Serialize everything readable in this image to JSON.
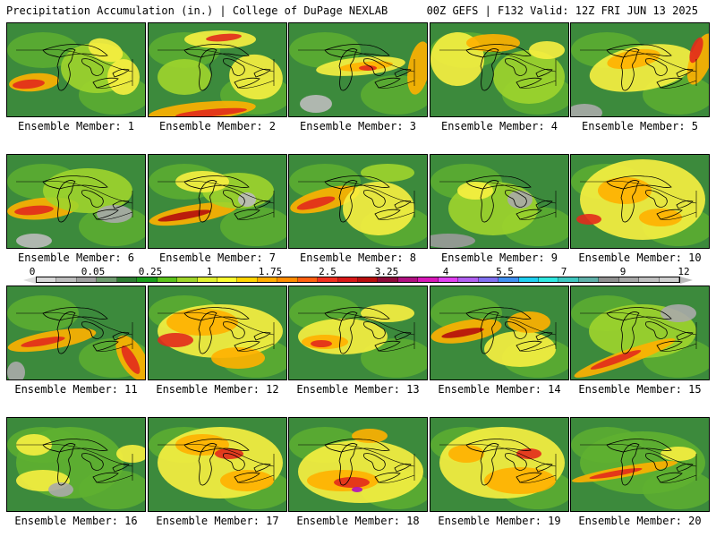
{
  "header": {
    "left": "Precipitation Accumulation (in.) | College of DuPage NEXLAB",
    "right": "00Z GEFS | F132 Valid: 12Z FRI JUN 13 2025"
  },
  "panels": [
    {
      "label": "Ensemble Member: 1"
    },
    {
      "label": "Ensemble Member: 2"
    },
    {
      "label": "Ensemble Member: 3"
    },
    {
      "label": "Ensemble Member: 4"
    },
    {
      "label": "Ensemble Member: 5"
    },
    {
      "label": "Ensemble Member: 6"
    },
    {
      "label": "Ensemble Member: 7"
    },
    {
      "label": "Ensemble Member: 8"
    },
    {
      "label": "Ensemble Member: 9"
    },
    {
      "label": "Ensemble Member: 10"
    },
    {
      "label": "Ensemble Member: 11"
    },
    {
      "label": "Ensemble Member: 12"
    },
    {
      "label": "Ensemble Member: 13"
    },
    {
      "label": "Ensemble Member: 14"
    },
    {
      "label": "Ensemble Member: 15"
    },
    {
      "label": "Ensemble Member: 16"
    },
    {
      "label": "Ensemble Member: 17"
    },
    {
      "label": "Ensemble Member: 18"
    },
    {
      "label": "Ensemble Member: 19"
    },
    {
      "label": "Ensemble Member: 20"
    }
  ],
  "legend": {
    "ticks": [
      "0",
      "0.05",
      "0.25",
      "1",
      "1.75",
      "2.5",
      "3.25",
      "4",
      "5.5",
      "7",
      "9",
      "12"
    ],
    "colors": [
      "#d8d8d8",
      "#bdbdbd",
      "#a0a0a0",
      "#6e9a6e",
      "#2e7d32",
      "#1b9e1b",
      "#5cc21c",
      "#9ed42a",
      "#e0ef30",
      "#fbfb30",
      "#ffd400",
      "#ffab00",
      "#ff8c00",
      "#ff6010",
      "#f03020",
      "#d81818",
      "#b80e0e",
      "#8e0a3a",
      "#b01080",
      "#d818b8",
      "#e040f0",
      "#b060f0",
      "#8070f0",
      "#4090f0",
      "#20d0f0",
      "#30e8e0",
      "#40c8c0",
      "#60b0a8",
      "#909090",
      "#a8a8a8",
      "#c0c0c0",
      "#d0d0d0"
    ]
  }
}
